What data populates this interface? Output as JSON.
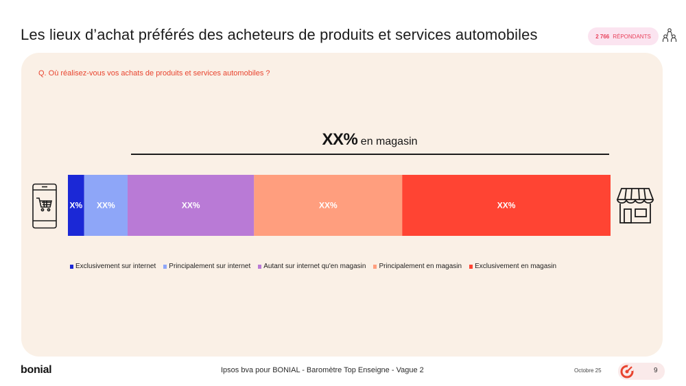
{
  "title": "Les lieux d’achat préférés des acheteurs de produits et services automobiles",
  "respondents": {
    "count": "2 766",
    "label": "RÉPONDANTS"
  },
  "question": "Q. Où réalisez-vous vos achats de produits et services automobiles ?",
  "headline": {
    "value": "XX%",
    "text": "en magasin"
  },
  "colors": {
    "panel_bg": "#faf0e6",
    "accent_red": "#e8432e",
    "exclusively_internet": "#1b28d6",
    "mainly_internet": "#8ea6f8",
    "both": "#b97ad6",
    "mainly_store": "#ff9e7e",
    "exclusively_store": "#ff4433"
  },
  "chart_data": {
    "type": "bar",
    "orientation": "horizontal-stacked",
    "title": "",
    "xlabel": "",
    "ylabel": "",
    "xlim": [
      0,
      100
    ],
    "categories": [
      ""
    ],
    "series": [
      {
        "name": "Exclusivement sur internet",
        "values": [
          3
        ],
        "label": "X%",
        "color": "#1b28d6"
      },
      {
        "name": "Principalement sur internet",
        "values": [
          8
        ],
        "label": "XX%",
        "color": "#8ea6f8"
      },
      {
        "name": "Autant sur internet qu'en magasin",
        "values": [
          23.3
        ],
        "label": "XX%",
        "color": "#b97ad6"
      },
      {
        "name": "Principalement en magasin",
        "values": [
          27.3
        ],
        "label": "XX%",
        "color": "#ff9e7e"
      },
      {
        "name": "Exclusivement en magasin",
        "values": [
          38.4
        ],
        "label": "XX%",
        "color": "#ff4433"
      }
    ],
    "legend_position": "bottom"
  },
  "footer": {
    "logo": "bonial",
    "source": "Ipsos bva pour BONIAL - Baromètre Top Enseigne - Vague 2",
    "date": "Octobre 25",
    "page": "9"
  }
}
